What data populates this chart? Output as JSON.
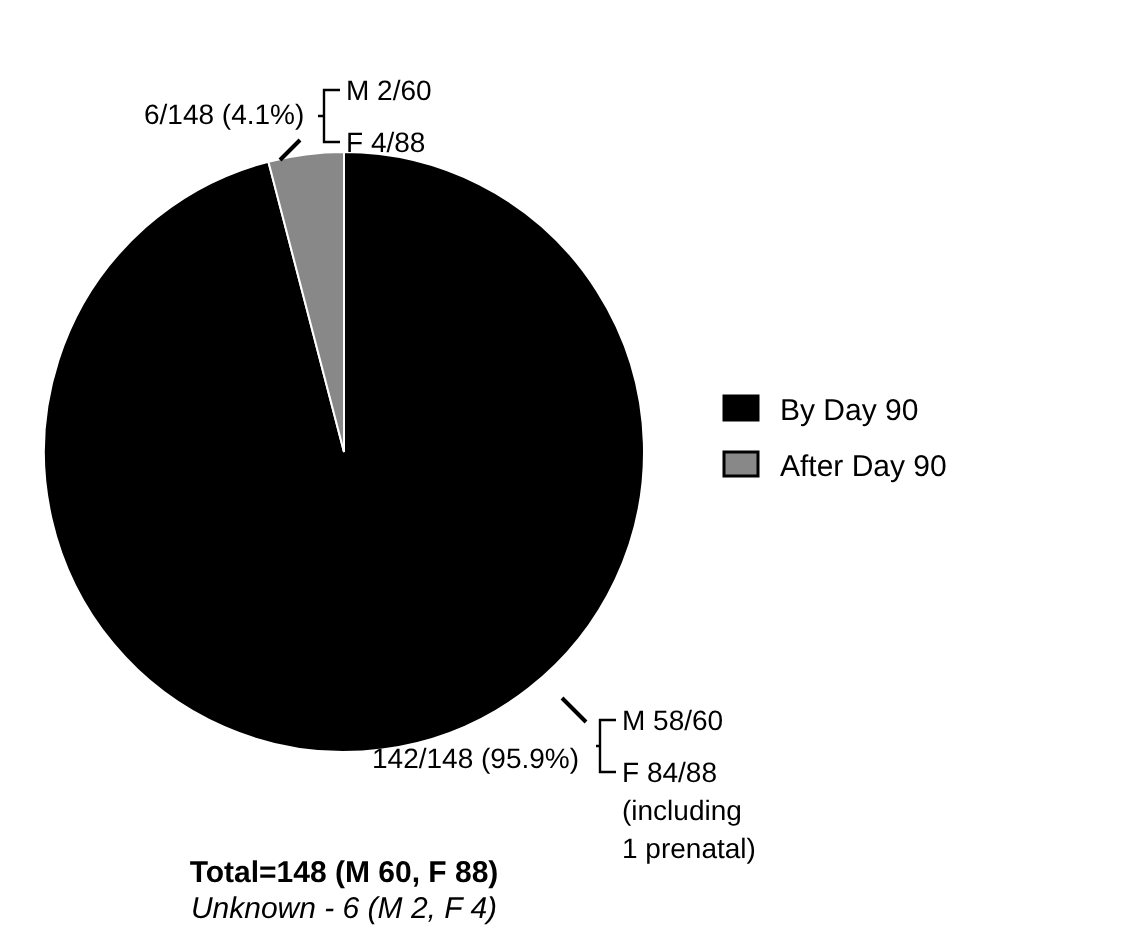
{
  "chart_data": {
    "type": "pie",
    "title": "Total=148 (M 60, F 88)",
    "subtitle": "Unknown - 6 (M 2, F 4)",
    "categories": [
      "By Day 90",
      "After Day 90"
    ],
    "values": [
      142,
      6
    ],
    "colors": [
      "#000000",
      "#888888"
    ],
    "value_labels": [
      "142/148 (95.9%)",
      "6/148 (4.1%)"
    ],
    "annotations": [
      "M 58/60",
      "F 84/88\n(including\n1 prenatal)",
      "M 2/60",
      "F 4/88"
    ],
    "legend": "right"
  }
}
